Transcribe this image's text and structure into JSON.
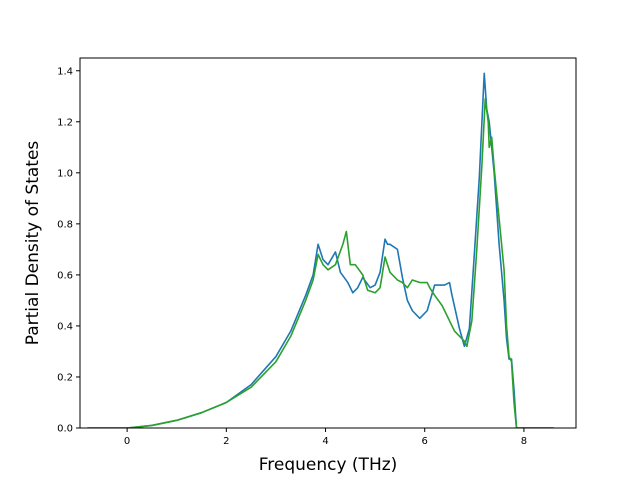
{
  "chart_data": {
    "type": "line",
    "title": "",
    "xlabel": "Frequency (THz)",
    "ylabel": "Partial Density of States",
    "xlim": [
      -0.95,
      9.05
    ],
    "ylim": [
      0.0,
      1.45
    ],
    "xticks": [
      0,
      2,
      4,
      6,
      8
    ],
    "yticks": [
      0.0,
      0.2,
      0.4,
      0.6,
      0.8,
      1.0,
      1.2,
      1.4
    ],
    "xtick_labels": [
      "0",
      "2",
      "4",
      "6",
      "8"
    ],
    "ytick_labels": [
      "0.0",
      "0.2",
      "0.4",
      "0.6",
      "0.8",
      "1.0",
      "1.2",
      "1.4"
    ],
    "grid": false,
    "legend": "none",
    "series": [
      {
        "color": "#1f77b4",
        "x": [
          -0.8,
          0.0,
          0.5,
          1.0,
          1.5,
          2.0,
          2.5,
          3.0,
          3.3,
          3.6,
          3.75,
          3.85,
          3.95,
          4.05,
          4.2,
          4.3,
          4.45,
          4.55,
          4.65,
          4.75,
          4.9,
          5.0,
          5.1,
          5.2,
          5.25,
          5.3,
          5.45,
          5.55,
          5.65,
          5.75,
          5.9,
          6.05,
          6.2,
          6.4,
          6.5,
          6.55,
          6.7,
          6.8,
          6.9,
          7.0,
          7.1,
          7.2,
          7.25,
          7.3,
          7.35,
          7.4,
          7.5,
          7.6,
          7.65,
          7.7,
          7.75,
          7.8,
          7.85,
          7.9,
          8.6
        ],
        "y": [
          0.0,
          0.0,
          0.01,
          0.03,
          0.06,
          0.1,
          0.17,
          0.28,
          0.38,
          0.52,
          0.6,
          0.72,
          0.66,
          0.64,
          0.69,
          0.61,
          0.57,
          0.53,
          0.55,
          0.59,
          0.55,
          0.56,
          0.61,
          0.74,
          0.72,
          0.72,
          0.7,
          0.59,
          0.5,
          0.46,
          0.43,
          0.46,
          0.56,
          0.56,
          0.57,
          0.52,
          0.39,
          0.32,
          0.39,
          0.68,
          0.98,
          1.39,
          1.25,
          1.2,
          1.1,
          1.0,
          0.72,
          0.5,
          0.35,
          0.27,
          0.27,
          0.15,
          0.0,
          0.0,
          0.0
        ]
      },
      {
        "color": "#2ca02c",
        "x": [
          -0.8,
          0.0,
          0.5,
          1.0,
          1.5,
          2.0,
          2.5,
          3.0,
          3.3,
          3.6,
          3.75,
          3.85,
          3.95,
          4.05,
          4.2,
          4.35,
          4.42,
          4.5,
          4.6,
          4.75,
          4.85,
          5.0,
          5.1,
          5.2,
          5.3,
          5.45,
          5.55,
          5.65,
          5.75,
          5.9,
          6.05,
          6.1,
          6.2,
          6.35,
          6.5,
          6.6,
          6.8,
          6.85,
          6.95,
          7.05,
          7.15,
          7.22,
          7.28,
          7.3,
          7.35,
          7.4,
          7.5,
          7.6,
          7.65,
          7.7,
          7.75,
          7.8,
          7.85,
          7.9,
          8.6
        ],
        "y": [
          0.0,
          0.0,
          0.01,
          0.03,
          0.06,
          0.1,
          0.16,
          0.26,
          0.36,
          0.5,
          0.58,
          0.68,
          0.64,
          0.62,
          0.64,
          0.72,
          0.77,
          0.64,
          0.64,
          0.6,
          0.54,
          0.53,
          0.55,
          0.67,
          0.61,
          0.58,
          0.57,
          0.55,
          0.58,
          0.57,
          0.57,
          0.55,
          0.52,
          0.48,
          0.42,
          0.38,
          0.34,
          0.32,
          0.42,
          0.7,
          1.02,
          1.29,
          1.2,
          1.1,
          1.14,
          1.02,
          0.82,
          0.62,
          0.4,
          0.28,
          0.26,
          0.1,
          0.0,
          0.0,
          0.0
        ]
      }
    ]
  }
}
